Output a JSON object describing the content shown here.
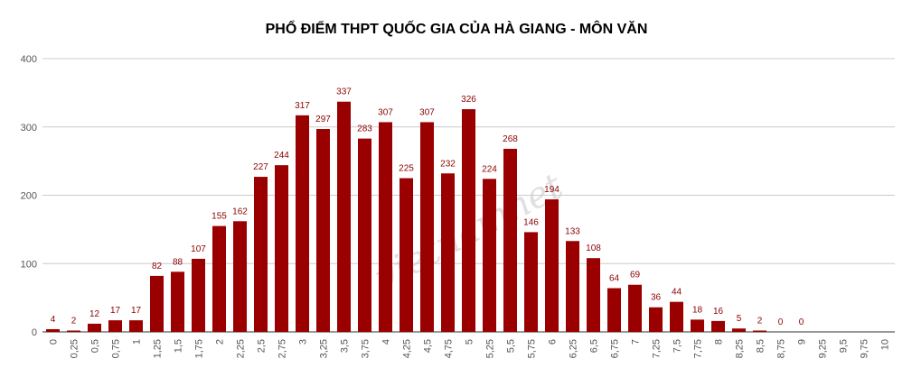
{
  "chart_data": {
    "type": "bar",
    "title": "PHỔ ĐIỂM THPT QUỐC GIA CỦA HÀ GIANG  - MÔN VĂN",
    "watermark": "vietnamnet",
    "categories": [
      "0",
      "0,25",
      "0,5",
      "0,75",
      "1",
      "1,25",
      "1,5",
      "1,75",
      "2",
      "2,25",
      "2,5",
      "2,75",
      "3",
      "3,25",
      "3,5",
      "3,75",
      "4",
      "4,25",
      "4,5",
      "4,75",
      "5",
      "5,25",
      "5,5",
      "5,75",
      "6",
      "6,25",
      "6,5",
      "6,75",
      "7",
      "7,25",
      "7,5",
      "7,75",
      "8",
      "8,25",
      "8,5",
      "8,75",
      "9",
      "9,25",
      "9,5",
      "9,75",
      "10"
    ],
    "values": [
      4,
      2,
      12,
      17,
      17,
      82,
      88,
      107,
      155,
      162,
      227,
      244,
      317,
      297,
      337,
      283,
      307,
      225,
      307,
      232,
      326,
      224,
      268,
      146,
      194,
      133,
      108,
      64,
      69,
      36,
      44,
      18,
      16,
      5,
      2,
      0,
      0,
      null,
      null,
      null,
      null
    ],
    "color": "#9b0000",
    "ylim": [
      0,
      400
    ],
    "yticks": [
      0,
      100,
      200,
      300,
      400
    ],
    "grid": true
  }
}
